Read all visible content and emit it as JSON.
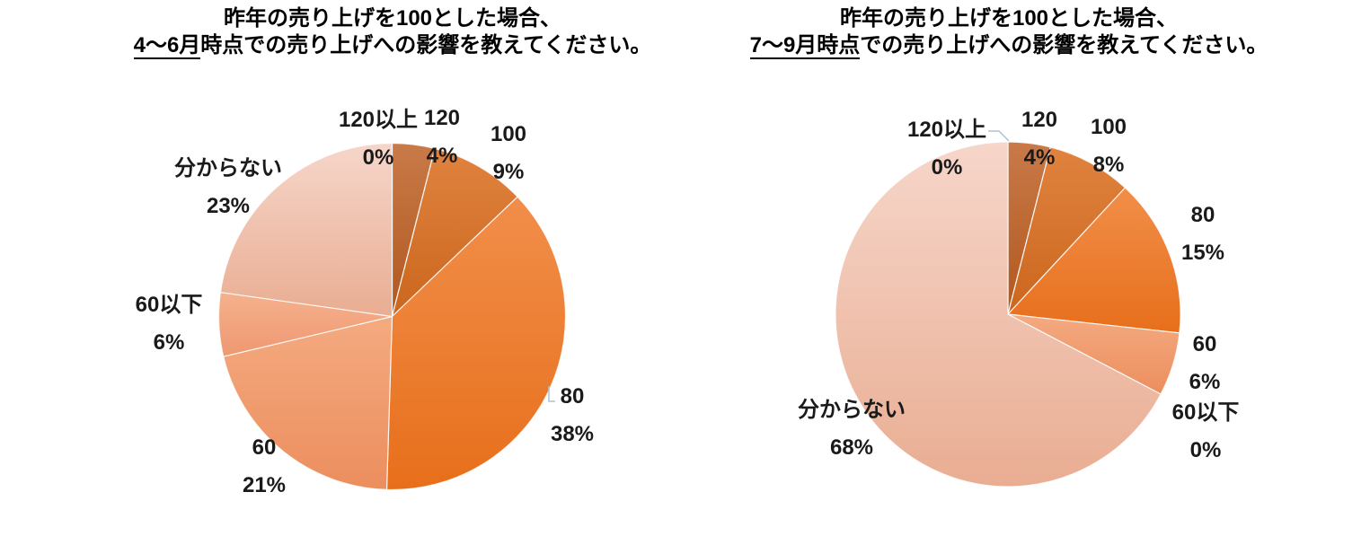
{
  "page": {
    "background": "#FFFFFF",
    "text_color": "#1A1A1A",
    "leader_line_color": "#AEC2CF"
  },
  "palette": [
    {
      "category": "120以上",
      "base": "#9E5B23",
      "light": "#AA6A31",
      "dark": "#8F4F1C"
    },
    {
      "category": "120",
      "base": "#BD6128",
      "light": "#C97A48",
      "dark": "#B0581F"
    },
    {
      "category": "100",
      "base": "#D96F27",
      "light": "#E0833F",
      "dark": "#CB661D"
    },
    {
      "category": "80",
      "base": "#ED7D31",
      "light": "#F18E4A",
      "dark": "#E76F1B"
    },
    {
      "category": "60",
      "base": "#F09B70",
      "light": "#F4AA80",
      "dark": "#EC8E5E"
    },
    {
      "category": "60以下",
      "base": "#F0A47E",
      "light": "#F5B18D",
      "dark": "#EE9871"
    },
    {
      "category": "分からない",
      "base": "#F1C3B1",
      "light": "#F6D6CA",
      "dark": "#E9AD92"
    }
  ],
  "charts": [
    {
      "title": {
        "line1": "昨年の売り上げを100とした場合、",
        "underline": "4～6月",
        "rest": "時点での売り上げへの影響を教えてください。"
      },
      "slices": [
        {
          "label": "120以上",
          "pct": "0%",
          "value": 0
        },
        {
          "label": "120",
          "pct": "4%",
          "value": 4
        },
        {
          "label": "100",
          "pct": "9%",
          "value": 9
        },
        {
          "label": "80",
          "pct": "38%",
          "value": 38
        },
        {
          "label": "60",
          "pct": "21%",
          "value": 21
        },
        {
          "label": "60以下",
          "pct": "6%",
          "value": 6
        },
        {
          "label": "分からない",
          "pct": "23%",
          "value": 23
        }
      ]
    },
    {
      "title": {
        "line1": "昨年の売り上げを100とした場合、",
        "underline": "7～9月時点",
        "rest": "での売り上げへの影響を教えてください。"
      },
      "slices": [
        {
          "label": "120以上",
          "pct": "0%",
          "value": 0
        },
        {
          "label": "120",
          "pct": "4%",
          "value": 4
        },
        {
          "label": "100",
          "pct": "8%",
          "value": 8
        },
        {
          "label": "80",
          "pct": "15%",
          "value": 15
        },
        {
          "label": "60",
          "pct": "6%",
          "value": 6
        },
        {
          "label": "60以下",
          "pct": "0%",
          "value": 0
        },
        {
          "label": "分からない",
          "pct": "68%",
          "value": 68
        }
      ]
    }
  ],
  "chart_data": [
    {
      "type": "pie",
      "title": "昨年の売り上げを100とした場合、4～6月時点での売り上げへの影響を教えてください。",
      "categories": [
        "120以上",
        "120",
        "100",
        "80",
        "60",
        "60以下",
        "分からない"
      ],
      "values": [
        0,
        4,
        9,
        38,
        21,
        6,
        23
      ],
      "unit": "%",
      "start_angle": "12 o'clock",
      "direction": "clockwise",
      "legend": "none",
      "data_labels": "category name + percentage, outside slices"
    },
    {
      "type": "pie",
      "title": "昨年の売り上げを100とした場合、7～9月時点での売り上げへの影響を教えてください。",
      "categories": [
        "120以上",
        "120",
        "100",
        "80",
        "60",
        "60以下",
        "分からない"
      ],
      "values": [
        0,
        4,
        8,
        15,
        6,
        0,
        68
      ],
      "unit": "%",
      "start_angle": "12 o'clock",
      "direction": "clockwise",
      "legend": "none",
      "data_labels": "category name + percentage, outside slices"
    }
  ]
}
